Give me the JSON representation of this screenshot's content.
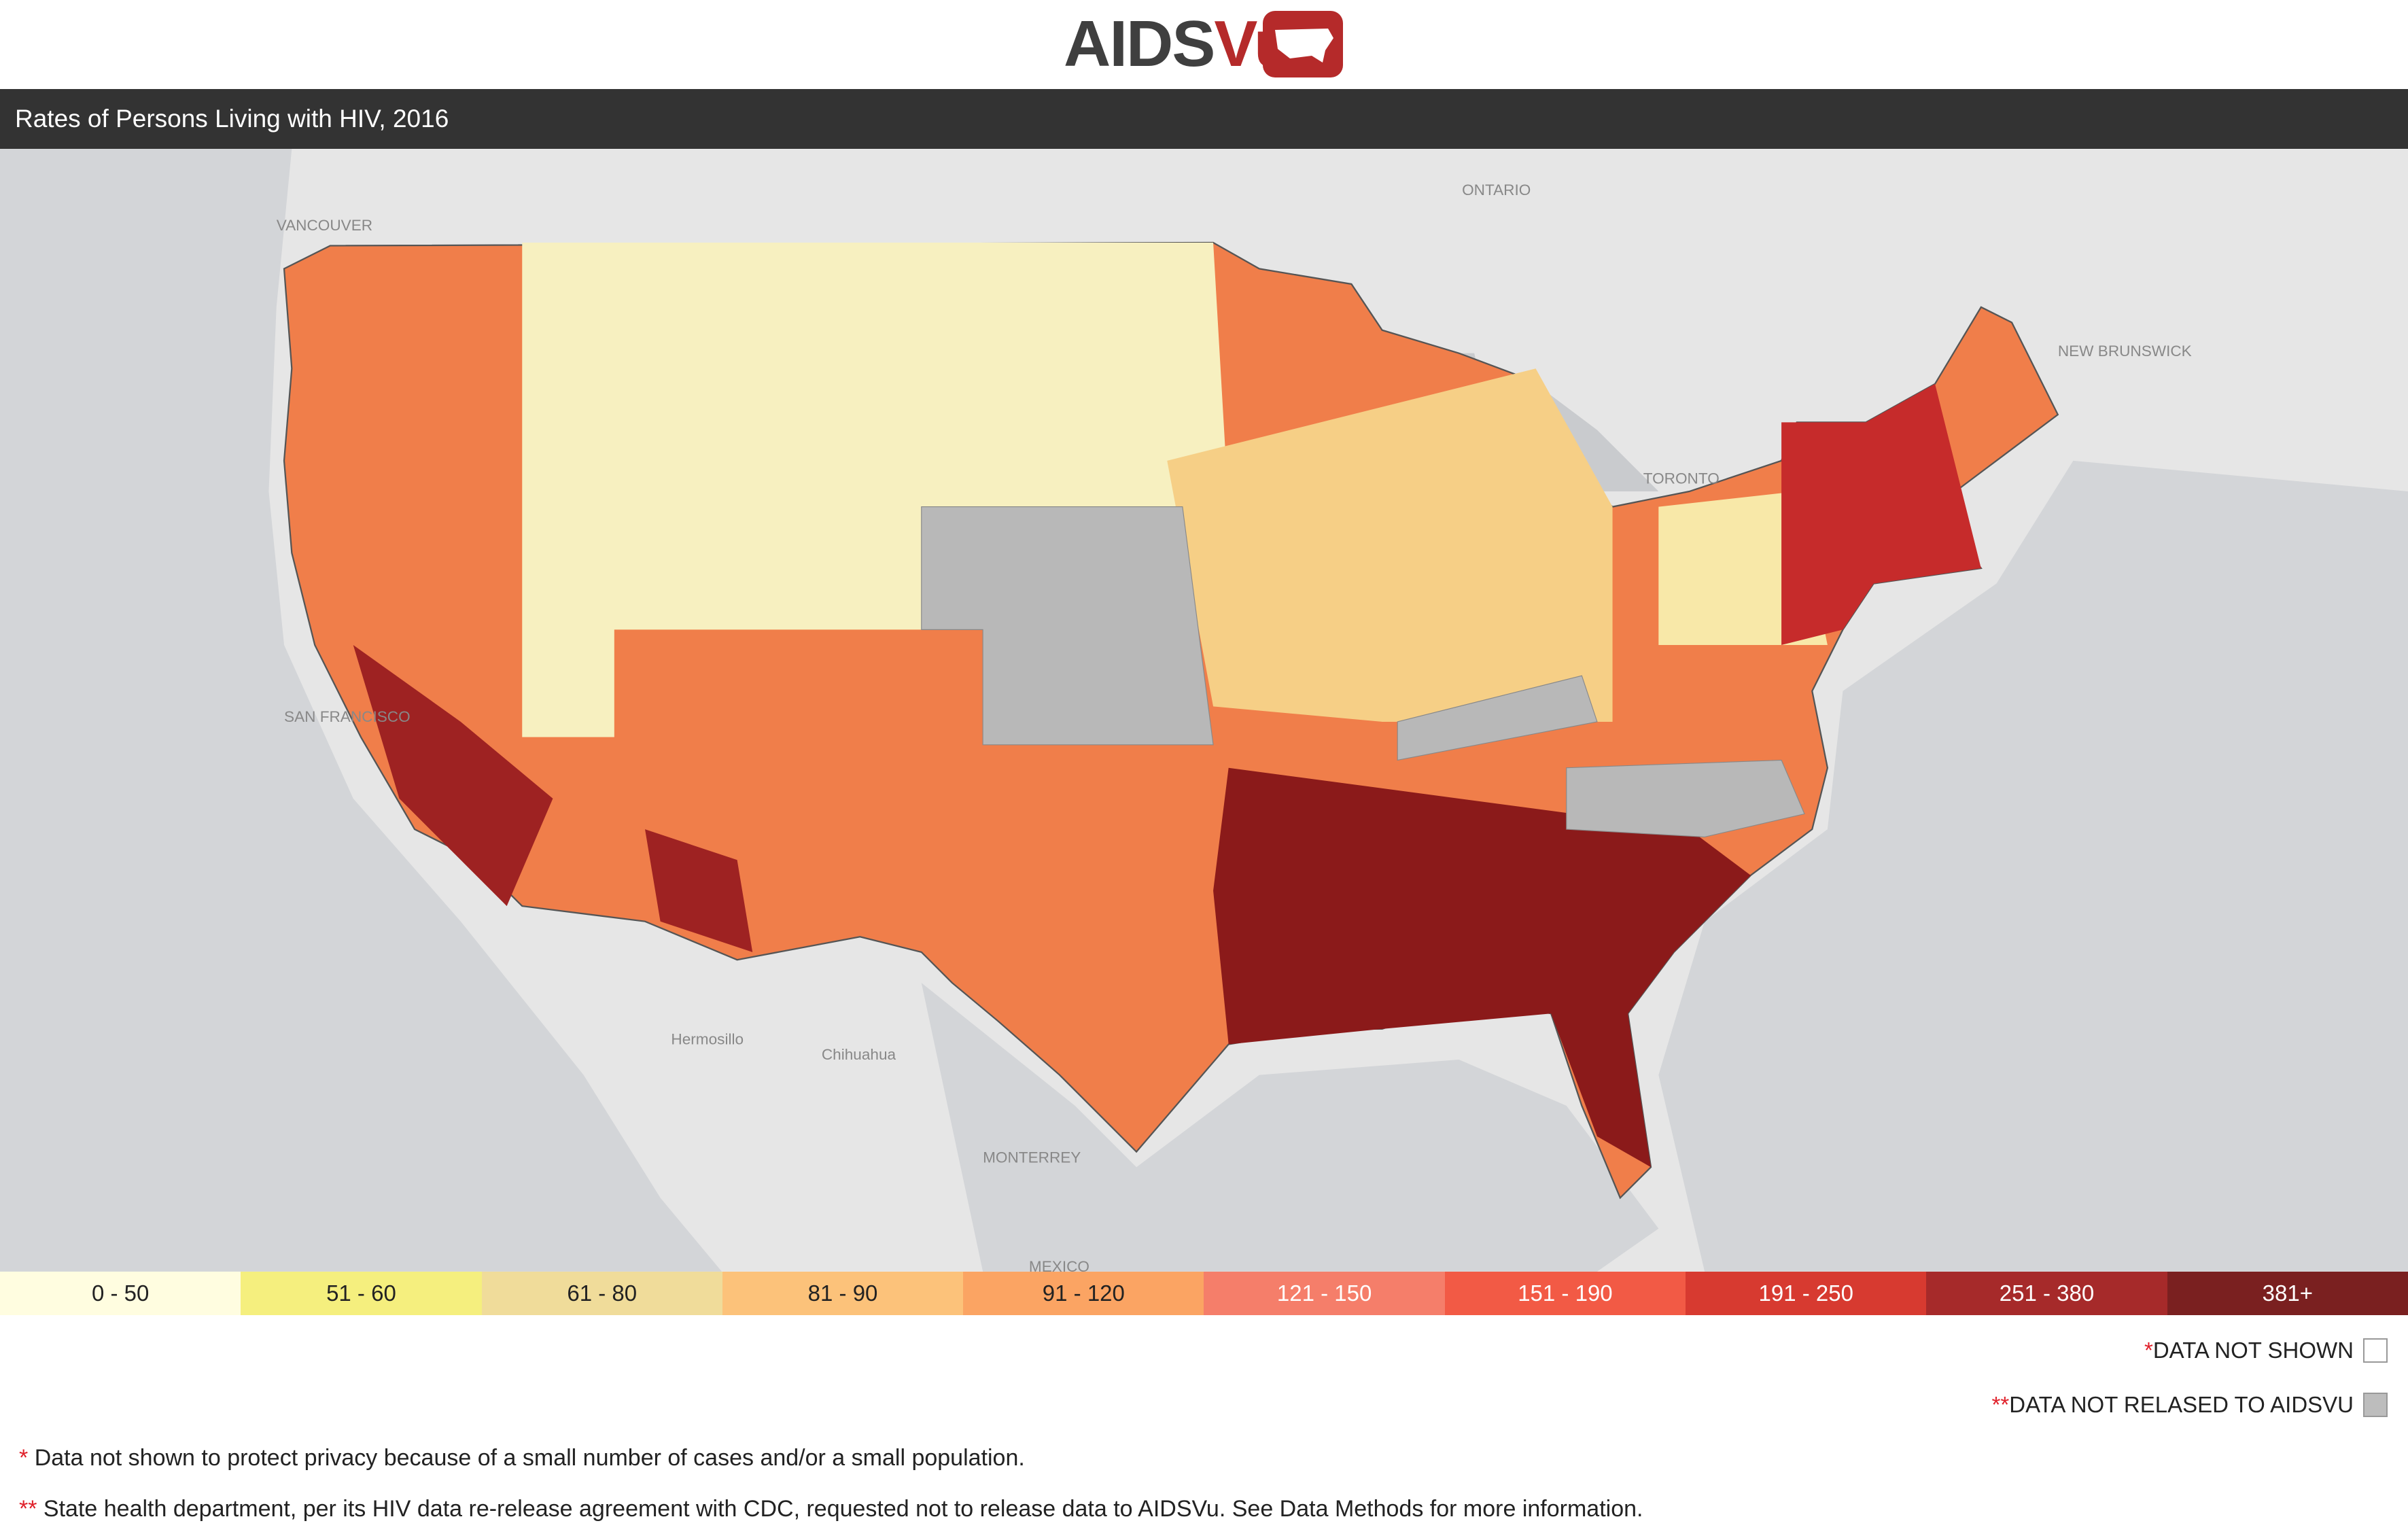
{
  "logo": {
    "part1": "AIDS",
    "part2": "Vu"
  },
  "title": "Rates of Persons Living with HIV, 2016",
  "map_labels": [
    "VANCOUVER",
    "ONTARIO",
    "TORONTO",
    "NEW BRUNSWICK",
    "SAN FRANCISCO",
    "MONTERREY",
    "MEXICO",
    "Chihuahua",
    "Hermosillo"
  ],
  "legend": {
    "bins": [
      {
        "label": "0 - 50",
        "color": "#fffde0"
      },
      {
        "label": "51 - 60",
        "color": "#f5ef7e"
      },
      {
        "label": "61 - 80",
        "color": "#f0dc9a"
      },
      {
        "label": "81 - 90",
        "color": "#fcc27a"
      },
      {
        "label": "91 - 120",
        "color": "#fba463"
      },
      {
        "label": "121 - 150",
        "color": "#f57e6a"
      },
      {
        "label": "151 - 190",
        "color": "#f25a45"
      },
      {
        "label": "191 - 250",
        "color": "#d73a30"
      },
      {
        "label": "251 - 380",
        "color": "#a62a2a"
      },
      {
        "label": "381+",
        "color": "#7a2020"
      }
    ],
    "keys": [
      {
        "mark": "*",
        "text": "DATA NOT SHOWN",
        "color": "#ffffff"
      },
      {
        "mark": "**",
        "text": "DATA NOT RELASED TO AIDSVU",
        "color": "#bdbdbd"
      }
    ]
  },
  "notes": [
    {
      "mark": "*",
      "text": "Data not shown to protect privacy because of a small number of cases and/or a small population."
    },
    {
      "mark": "**",
      "text": "State health department, per its HIV data re-release agreement with CDC, requested not to release data to AIDSVu. See Data Methods for more information."
    }
  ]
}
